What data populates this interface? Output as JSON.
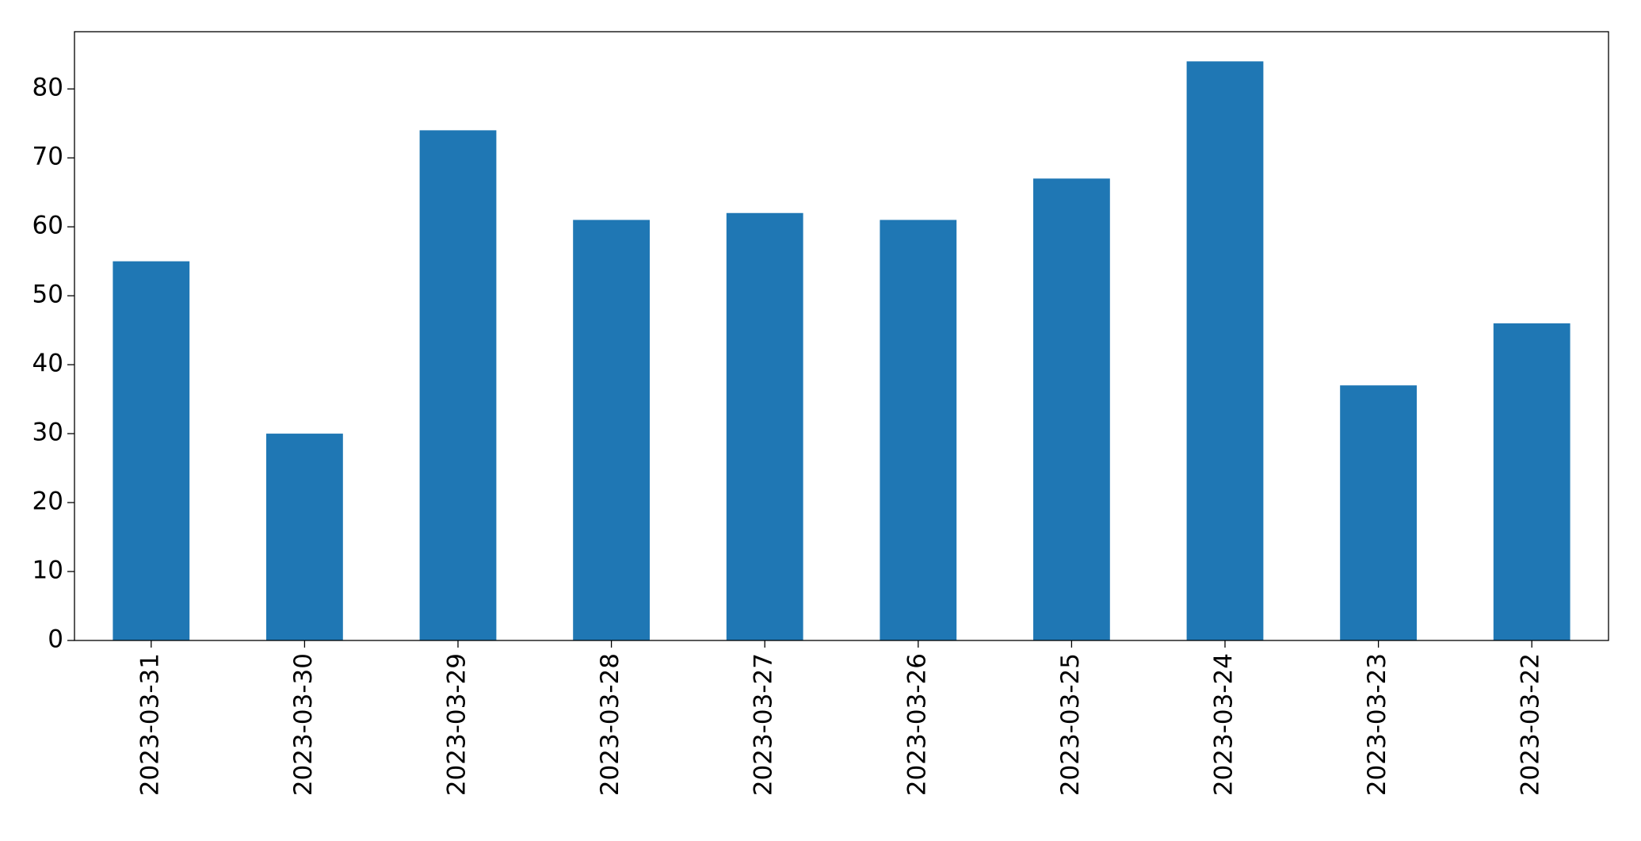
{
  "chart_data": {
    "type": "bar",
    "categories": [
      "2023-03-31",
      "2023-03-30",
      "2023-03-29",
      "2023-03-28",
      "2023-03-27",
      "2023-03-26",
      "2023-03-25",
      "2023-03-24",
      "2023-03-23",
      "2023-03-22"
    ],
    "values": [
      55,
      30,
      74,
      61,
      62,
      61,
      67,
      84,
      37,
      46
    ],
    "color": "#1f77b4",
    "ylim": [
      0,
      88.3
    ],
    "yticks": [
      0,
      10,
      20,
      30,
      40,
      50,
      60,
      70,
      80
    ],
    "grid": false
  }
}
